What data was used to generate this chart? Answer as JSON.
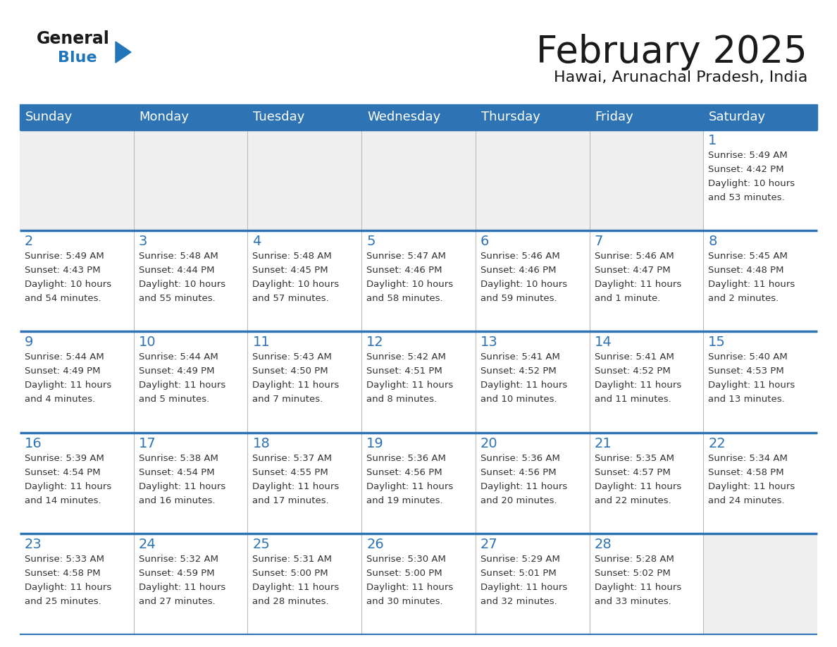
{
  "title": "February 2025",
  "subtitle": "Hawai, Arunachal Pradesh, India",
  "header_bg": "#2E74B5",
  "header_text_color": "#FFFFFF",
  "cell_bg_light": "#EFEFEF",
  "cell_bg_white": "#FFFFFF",
  "border_color": "#2E74B5",
  "separator_color": "#BBBBBB",
  "day_names": [
    "Sunday",
    "Monday",
    "Tuesday",
    "Wednesday",
    "Thursday",
    "Friday",
    "Saturday"
  ],
  "title_color": "#1A1A1A",
  "subtitle_color": "#1A1A1A",
  "day_number_color": "#2E74B5",
  "cell_text_color": "#333333",
  "logo_general_color": "#1A1A1A",
  "logo_blue_color": "#2175B8",
  "calendar_data": [
    [
      null,
      null,
      null,
      null,
      null,
      null,
      {
        "day": 1,
        "sunrise": "5:49 AM",
        "sunset": "4:42 PM",
        "daylight": "10 hours and 53 minutes."
      }
    ],
    [
      {
        "day": 2,
        "sunrise": "5:49 AM",
        "sunset": "4:43 PM",
        "daylight": "10 hours and 54 minutes."
      },
      {
        "day": 3,
        "sunrise": "5:48 AM",
        "sunset": "4:44 PM",
        "daylight": "10 hours and 55 minutes."
      },
      {
        "day": 4,
        "sunrise": "5:48 AM",
        "sunset": "4:45 PM",
        "daylight": "10 hours and 57 minutes."
      },
      {
        "day": 5,
        "sunrise": "5:47 AM",
        "sunset": "4:46 PM",
        "daylight": "10 hours and 58 minutes."
      },
      {
        "day": 6,
        "sunrise": "5:46 AM",
        "sunset": "4:46 PM",
        "daylight": "10 hours and 59 minutes."
      },
      {
        "day": 7,
        "sunrise": "5:46 AM",
        "sunset": "4:47 PM",
        "daylight": "11 hours and 1 minute."
      },
      {
        "day": 8,
        "sunrise": "5:45 AM",
        "sunset": "4:48 PM",
        "daylight": "11 hours and 2 minutes."
      }
    ],
    [
      {
        "day": 9,
        "sunrise": "5:44 AM",
        "sunset": "4:49 PM",
        "daylight": "11 hours and 4 minutes."
      },
      {
        "day": 10,
        "sunrise": "5:44 AM",
        "sunset": "4:49 PM",
        "daylight": "11 hours and 5 minutes."
      },
      {
        "day": 11,
        "sunrise": "5:43 AM",
        "sunset": "4:50 PM",
        "daylight": "11 hours and 7 minutes."
      },
      {
        "day": 12,
        "sunrise": "5:42 AM",
        "sunset": "4:51 PM",
        "daylight": "11 hours and 8 minutes."
      },
      {
        "day": 13,
        "sunrise": "5:41 AM",
        "sunset": "4:52 PM",
        "daylight": "11 hours and 10 minutes."
      },
      {
        "day": 14,
        "sunrise": "5:41 AM",
        "sunset": "4:52 PM",
        "daylight": "11 hours and 11 minutes."
      },
      {
        "day": 15,
        "sunrise": "5:40 AM",
        "sunset": "4:53 PM",
        "daylight": "11 hours and 13 minutes."
      }
    ],
    [
      {
        "day": 16,
        "sunrise": "5:39 AM",
        "sunset": "4:54 PM",
        "daylight": "11 hours and 14 minutes."
      },
      {
        "day": 17,
        "sunrise": "5:38 AM",
        "sunset": "4:54 PM",
        "daylight": "11 hours and 16 minutes."
      },
      {
        "day": 18,
        "sunrise": "5:37 AM",
        "sunset": "4:55 PM",
        "daylight": "11 hours and 17 minutes."
      },
      {
        "day": 19,
        "sunrise": "5:36 AM",
        "sunset": "4:56 PM",
        "daylight": "11 hours and 19 minutes."
      },
      {
        "day": 20,
        "sunrise": "5:36 AM",
        "sunset": "4:56 PM",
        "daylight": "11 hours and 20 minutes."
      },
      {
        "day": 21,
        "sunrise": "5:35 AM",
        "sunset": "4:57 PM",
        "daylight": "11 hours and 22 minutes."
      },
      {
        "day": 22,
        "sunrise": "5:34 AM",
        "sunset": "4:58 PM",
        "daylight": "11 hours and 24 minutes."
      }
    ],
    [
      {
        "day": 23,
        "sunrise": "5:33 AM",
        "sunset": "4:58 PM",
        "daylight": "11 hours and 25 minutes."
      },
      {
        "day": 24,
        "sunrise": "5:32 AM",
        "sunset": "4:59 PM",
        "daylight": "11 hours and 27 minutes."
      },
      {
        "day": 25,
        "sunrise": "5:31 AM",
        "sunset": "5:00 PM",
        "daylight": "11 hours and 28 minutes."
      },
      {
        "day": 26,
        "sunrise": "5:30 AM",
        "sunset": "5:00 PM",
        "daylight": "11 hours and 30 minutes."
      },
      {
        "day": 27,
        "sunrise": "5:29 AM",
        "sunset": "5:01 PM",
        "daylight": "11 hours and 32 minutes."
      },
      {
        "day": 28,
        "sunrise": "5:28 AM",
        "sunset": "5:02 PM",
        "daylight": "11 hours and 33 minutes."
      },
      null
    ]
  ]
}
